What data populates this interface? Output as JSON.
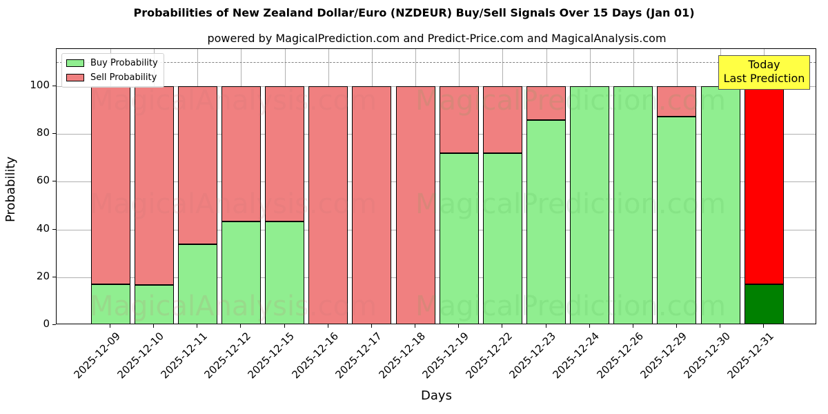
{
  "chart_data": {
    "type": "bar",
    "stacked": true,
    "title": "Probabilities of New Zealand Dollar/Euro (NZDEUR) Buy/Sell Signals Over 15 Days (Jan 01)",
    "subtitle": "powered by MagicalPrediction.com and Predict-Price.com and MagicalAnalysis.com",
    "xlabel": "Days",
    "ylabel": "Probability",
    "ylim": [
      0,
      115.6
    ],
    "yticks": [
      0,
      20,
      40,
      60,
      80,
      100
    ],
    "grid": true,
    "threshold_line": 110,
    "legend_position": "upper left",
    "categories": [
      "2025-12-09",
      "2025-12-10",
      "2025-12-11",
      "2025-12-12",
      "2025-12-15",
      "2025-12-16",
      "2025-12-17",
      "2025-12-18",
      "2025-12-19",
      "2025-12-22",
      "2025-12-23",
      "2025-12-24",
      "2025-12-26",
      "2025-12-29",
      "2025-12-30",
      "2025-12-31"
    ],
    "series": [
      {
        "name": "Buy Probability",
        "color": "#90ee90",
        "values": [
          17.0,
          16.8,
          33.8,
          43.3,
          43.3,
          0,
          0,
          0,
          72.0,
          72.0,
          85.8,
          100,
          100,
          87.3,
          100,
          17.0
        ]
      },
      {
        "name": "Sell Probability",
        "color": "#f08080",
        "values": [
          83.0,
          83.2,
          66.2,
          56.7,
          56.7,
          100,
          100,
          100,
          28.0,
          28.0,
          14.2,
          0,
          0,
          12.7,
          0,
          83.0
        ]
      }
    ],
    "highlight": {
      "index": 15,
      "buy_color": "#008000",
      "sell_color": "#ff0000",
      "annotation": [
        "Today",
        "Last Prediction"
      ]
    }
  },
  "title": "Probabilities of New Zealand Dollar/Euro (NZDEUR) Buy/Sell Signals Over 15 Days (Jan 01)",
  "subtitle": "powered by MagicalPrediction.com and Predict-Price.com and MagicalAnalysis.com",
  "legend": {
    "buy": "Buy Probability",
    "sell": "Sell Probability"
  },
  "annotation": {
    "line1": "Today",
    "line2": "Last Prediction"
  },
  "axis": {
    "xlabel": "Days",
    "ylabel": "Probability"
  },
  "watermarks": [
    "MagicalAnalysis.com",
    "MagicalPrediction.com"
  ],
  "colors": {
    "buy": "#90ee90",
    "sell": "#f08080",
    "today_buy": "#008000",
    "today_sell": "#ff0000",
    "annotation_bg": "#ffff44"
  }
}
